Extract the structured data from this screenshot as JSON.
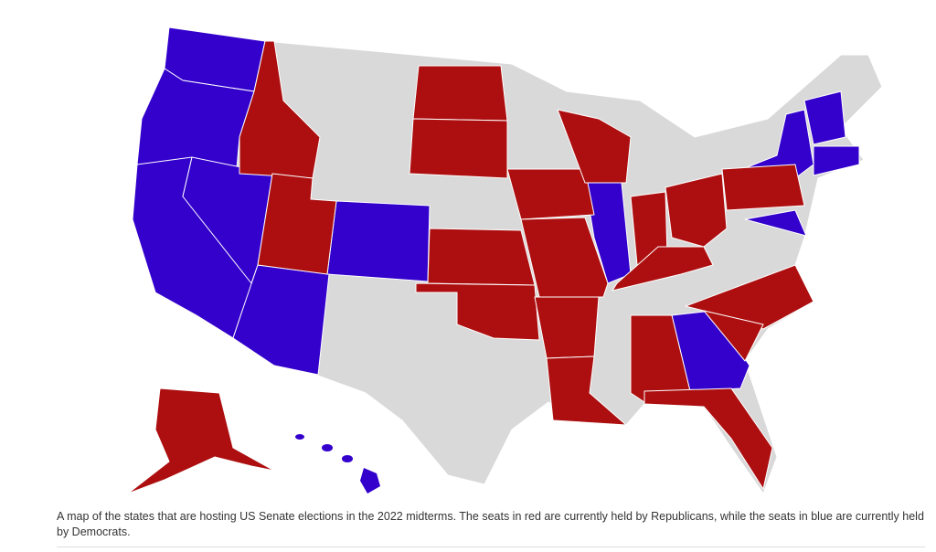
{
  "caption": "A map of the states that are hosting US Senate elections in the 2022 midterms. The seats in red are currently held by Republicans, while the seats in blue are currently held by Democrats."
}
